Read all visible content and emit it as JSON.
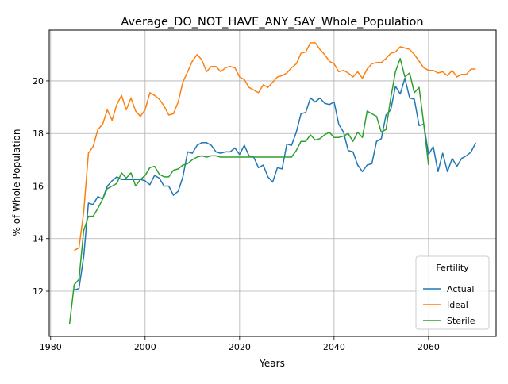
{
  "chart_data": {
    "type": "line",
    "title": "Average_DO_NOT_HAVE_ANY_SAY_Whole_Population",
    "xlabel": "Years",
    "ylabel": "% of Whole Population",
    "xlim": [
      1979.7,
      2074.3
    ],
    "ylim": [
      10.28,
      21.93
    ],
    "xticks": [
      1980,
      2000,
      2020,
      2040,
      2060
    ],
    "yticks": [
      12,
      14,
      16,
      18,
      20
    ],
    "grid": true,
    "legend": {
      "title": "Fertility",
      "placement": "lower-right"
    },
    "series": [
      {
        "name": "Actual",
        "color": "#1f77b4",
        "points": [
          [
            1985,
            12.05
          ],
          [
            1986,
            12.1
          ],
          [
            1987,
            13.3
          ],
          [
            1988,
            15.35
          ],
          [
            1989,
            15.3
          ],
          [
            1990,
            15.6
          ],
          [
            1991,
            15.5
          ],
          [
            1992,
            16.0
          ],
          [
            1993,
            16.2
          ],
          [
            1994,
            16.35
          ],
          [
            1995,
            16.25
          ],
          [
            1996,
            16.25
          ],
          [
            1997,
            16.25
          ],
          [
            1998,
            16.25
          ],
          [
            1999,
            16.25
          ],
          [
            2000,
            16.2
          ],
          [
            2001,
            16.05
          ],
          [
            2002,
            16.4
          ],
          [
            2003,
            16.3
          ],
          [
            2004,
            16.0
          ],
          [
            2005,
            16.0
          ],
          [
            2006,
            15.65
          ],
          [
            2007,
            15.8
          ],
          [
            2008,
            16.35
          ],
          [
            2009,
            17.3
          ],
          [
            2010,
            17.25
          ],
          [
            2011,
            17.55
          ],
          [
            2012,
            17.65
          ],
          [
            2013,
            17.65
          ],
          [
            2014,
            17.55
          ],
          [
            2015,
            17.3
          ],
          [
            2016,
            17.25
          ],
          [
            2017,
            17.3
          ],
          [
            2018,
            17.3
          ],
          [
            2019,
            17.45
          ],
          [
            2020,
            17.2
          ],
          [
            2021,
            17.55
          ],
          [
            2022,
            17.15
          ],
          [
            2023,
            17.1
          ],
          [
            2024,
            16.7
          ],
          [
            2025,
            16.8
          ],
          [
            2026,
            16.35
          ],
          [
            2027,
            16.15
          ],
          [
            2028,
            16.7
          ],
          [
            2029,
            16.65
          ],
          [
            2030,
            17.6
          ],
          [
            2031,
            17.55
          ],
          [
            2032,
            18.05
          ],
          [
            2033,
            18.75
          ],
          [
            2034,
            18.8
          ],
          [
            2035,
            19.35
          ],
          [
            2036,
            19.2
          ],
          [
            2037,
            19.35
          ],
          [
            2038,
            19.15
          ],
          [
            2039,
            19.1
          ],
          [
            2040,
            19.2
          ],
          [
            2041,
            18.35
          ],
          [
            2042,
            18.05
          ],
          [
            2043,
            17.35
          ],
          [
            2044,
            17.3
          ],
          [
            2045,
            16.8
          ],
          [
            2046,
            16.55
          ],
          [
            2047,
            16.8
          ],
          [
            2048,
            16.85
          ],
          [
            2049,
            17.7
          ],
          [
            2050,
            17.8
          ],
          [
            2051,
            18.7
          ],
          [
            2052,
            18.9
          ],
          [
            2053,
            19.8
          ],
          [
            2054,
            19.5
          ],
          [
            2055,
            20.1
          ],
          [
            2056,
            19.35
          ],
          [
            2057,
            19.3
          ],
          [
            2058,
            18.3
          ],
          [
            2059,
            18.35
          ],
          [
            2060,
            17.2
          ],
          [
            2061,
            17.5
          ],
          [
            2062,
            16.55
          ],
          [
            2063,
            17.25
          ],
          [
            2064,
            16.55
          ],
          [
            2065,
            17.05
          ],
          [
            2066,
            16.75
          ],
          [
            2067,
            17.05
          ],
          [
            2068,
            17.15
          ],
          [
            2069,
            17.3
          ],
          [
            2070,
            17.65
          ]
        ]
      },
      {
        "name": "Ideal",
        "color": "#ff7f0e",
        "points": [
          [
            1985,
            13.55
          ],
          [
            1986,
            13.65
          ],
          [
            1987,
            15.0
          ],
          [
            1988,
            17.25
          ],
          [
            1989,
            17.5
          ],
          [
            1990,
            18.15
          ],
          [
            1991,
            18.35
          ],
          [
            1992,
            18.9
          ],
          [
            1993,
            18.5
          ],
          [
            1994,
            19.1
          ],
          [
            1995,
            19.45
          ],
          [
            1996,
            18.9
          ],
          [
            1997,
            19.35
          ],
          [
            1998,
            18.85
          ],
          [
            1999,
            18.65
          ],
          [
            2000,
            18.9
          ],
          [
            2001,
            19.55
          ],
          [
            2002,
            19.45
          ],
          [
            2003,
            19.3
          ],
          [
            2004,
            19.05
          ],
          [
            2005,
            18.7
          ],
          [
            2006,
            18.75
          ],
          [
            2007,
            19.2
          ],
          [
            2008,
            19.95
          ],
          [
            2009,
            20.35
          ],
          [
            2010,
            20.75
          ],
          [
            2011,
            21.0
          ],
          [
            2012,
            20.8
          ],
          [
            2013,
            20.35
          ],
          [
            2014,
            20.55
          ],
          [
            2015,
            20.55
          ],
          [
            2016,
            20.35
          ],
          [
            2017,
            20.5
          ],
          [
            2018,
            20.55
          ],
          [
            2019,
            20.5
          ],
          [
            2020,
            20.15
          ],
          [
            2021,
            20.05
          ],
          [
            2022,
            19.75
          ],
          [
            2023,
            19.65
          ],
          [
            2024,
            19.55
          ],
          [
            2025,
            19.85
          ],
          [
            2026,
            19.75
          ],
          [
            2027,
            19.95
          ],
          [
            2028,
            20.15
          ],
          [
            2029,
            20.2
          ],
          [
            2030,
            20.3
          ],
          [
            2031,
            20.5
          ],
          [
            2032,
            20.65
          ],
          [
            2033,
            21.05
          ],
          [
            2034,
            21.1
          ],
          [
            2035,
            21.45
          ],
          [
            2036,
            21.45
          ],
          [
            2037,
            21.2
          ],
          [
            2038,
            21.0
          ],
          [
            2039,
            20.75
          ],
          [
            2040,
            20.65
          ],
          [
            2041,
            20.35
          ],
          [
            2042,
            20.4
          ],
          [
            2043,
            20.3
          ],
          [
            2044,
            20.15
          ],
          [
            2045,
            20.35
          ],
          [
            2046,
            20.1
          ],
          [
            2047,
            20.45
          ],
          [
            2048,
            20.65
          ],
          [
            2049,
            20.7
          ],
          [
            2050,
            20.7
          ],
          [
            2051,
            20.85
          ],
          [
            2052,
            21.05
          ],
          [
            2053,
            21.1
          ],
          [
            2054,
            21.3
          ],
          [
            2055,
            21.25
          ],
          [
            2056,
            21.2
          ],
          [
            2057,
            21.0
          ],
          [
            2058,
            20.75
          ],
          [
            2059,
            20.5
          ],
          [
            2060,
            20.4
          ],
          [
            2061,
            20.4
          ],
          [
            2062,
            20.3
          ],
          [
            2063,
            20.35
          ],
          [
            2064,
            20.2
          ],
          [
            2065,
            20.4
          ],
          [
            2066,
            20.15
          ],
          [
            2067,
            20.25
          ],
          [
            2068,
            20.25
          ],
          [
            2069,
            20.45
          ],
          [
            2070,
            20.45
          ]
        ]
      },
      {
        "name": "Sterile",
        "color": "#2ca02c",
        "points": [
          [
            1984,
            10.75
          ],
          [
            1985,
            12.25
          ],
          [
            1986,
            12.45
          ],
          [
            1987,
            14.3
          ],
          [
            1988,
            14.85
          ],
          [
            1989,
            14.85
          ],
          [
            1990,
            15.15
          ],
          [
            1991,
            15.5
          ],
          [
            1992,
            15.9
          ],
          [
            1993,
            16.0
          ],
          [
            1994,
            16.1
          ],
          [
            1995,
            16.5
          ],
          [
            1996,
            16.3
          ],
          [
            1997,
            16.5
          ],
          [
            1998,
            16.0
          ],
          [
            1999,
            16.25
          ],
          [
            2000,
            16.4
          ],
          [
            2001,
            16.7
          ],
          [
            2002,
            16.75
          ],
          [
            2003,
            16.45
          ],
          [
            2004,
            16.35
          ],
          [
            2005,
            16.35
          ],
          [
            2006,
            16.6
          ],
          [
            2007,
            16.65
          ],
          [
            2008,
            16.8
          ],
          [
            2009,
            16.85
          ],
          [
            2010,
            17.0
          ],
          [
            2011,
            17.1
          ],
          [
            2012,
            17.15
          ],
          [
            2013,
            17.1
          ],
          [
            2014,
            17.15
          ],
          [
            2015,
            17.15
          ],
          [
            2016,
            17.1
          ],
          [
            2017,
            17.1
          ],
          [
            2018,
            17.1
          ],
          [
            2019,
            17.1
          ],
          [
            2020,
            17.1
          ],
          [
            2021,
            17.1
          ],
          [
            2022,
            17.1
          ],
          [
            2023,
            17.1
          ],
          [
            2024,
            17.1
          ],
          [
            2025,
            17.1
          ],
          [
            2026,
            17.1
          ],
          [
            2027,
            17.1
          ],
          [
            2028,
            17.1
          ],
          [
            2029,
            17.1
          ],
          [
            2030,
            17.1
          ],
          [
            2031,
            17.1
          ],
          [
            2032,
            17.35
          ],
          [
            2033,
            17.7
          ],
          [
            2034,
            17.7
          ],
          [
            2035,
            17.95
          ],
          [
            2036,
            17.75
          ],
          [
            2037,
            17.8
          ],
          [
            2038,
            17.95
          ],
          [
            2039,
            18.05
          ],
          [
            2040,
            17.85
          ],
          [
            2041,
            17.85
          ],
          [
            2042,
            17.9
          ],
          [
            2043,
            18.0
          ],
          [
            2044,
            17.7
          ],
          [
            2045,
            18.05
          ],
          [
            2046,
            17.85
          ],
          [
            2047,
            18.85
          ],
          [
            2048,
            18.75
          ],
          [
            2049,
            18.65
          ],
          [
            2050,
            18.05
          ],
          [
            2051,
            18.15
          ],
          [
            2052,
            19.35
          ],
          [
            2053,
            20.35
          ],
          [
            2054,
            20.85
          ],
          [
            2055,
            20.15
          ],
          [
            2056,
            20.3
          ],
          [
            2057,
            19.55
          ],
          [
            2058,
            19.75
          ],
          [
            2059,
            18.35
          ],
          [
            2060,
            16.8
          ]
        ]
      }
    ]
  }
}
